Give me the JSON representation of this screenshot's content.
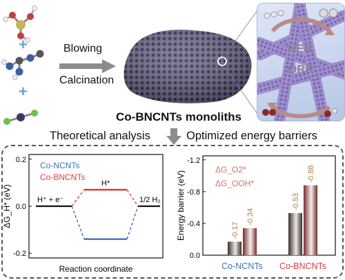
{
  "synthesis": {
    "step1": "Blowing",
    "step2": "Calcination",
    "product": "Co-BNCNTs monoliths",
    "reactions": [
      "HER",
      "ORR"
    ]
  },
  "analysis": {
    "left_caption": "Theoretical analysis",
    "right_caption": "Optimized energy barriers"
  },
  "colors": {
    "co_ncnts": "#3f6fb8",
    "co_bncnts": "#e03a3a",
    "bar_dark": "#3a2e2a",
    "bar_light": "#ece7e5",
    "bar2_dark": "#7a2a2a",
    "bar2_light": "#f4eeee",
    "value_text": "#b07a4a"
  },
  "chart_data": [
    {
      "type": "line",
      "title": "",
      "xlabel": "Reaction coordinate",
      "ylabel": "ΔG_H* (eV)",
      "y_ticks": [
        "0.2",
        "0.0",
        "-0.2"
      ],
      "ylim": [
        -0.22,
        0.22
      ],
      "states": [
        "H⁺ + e⁻",
        "H*",
        "1/2 H₂"
      ],
      "series": [
        {
          "name": "Co-NCNTs",
          "values": [
            0.0,
            -0.14,
            0.0
          ]
        },
        {
          "name": "Co-BNCNTs",
          "values": [
            0.0,
            0.07,
            0.0
          ]
        }
      ]
    },
    {
      "type": "bar",
      "title": "",
      "xlabel": "",
      "ylabel": "Energy barrier (eV)",
      "y_ticks": [
        "-1.2",
        "-0.8",
        "-0.4",
        "0.0"
      ],
      "ylim": [
        -1.25,
        0.0
      ],
      "categories": [
        "Co-NCNTs",
        "Co-BNCNTs"
      ],
      "series": [
        {
          "name": "ΔG_O2*",
          "values": [
            -0.17,
            -0.53
          ],
          "labels": [
            "-0.17",
            "-0.53"
          ]
        },
        {
          "name": "ΔG_OOH*",
          "values": [
            -0.34,
            -0.88
          ],
          "labels": [
            "-0.34",
            "-0.88"
          ]
        }
      ]
    }
  ]
}
